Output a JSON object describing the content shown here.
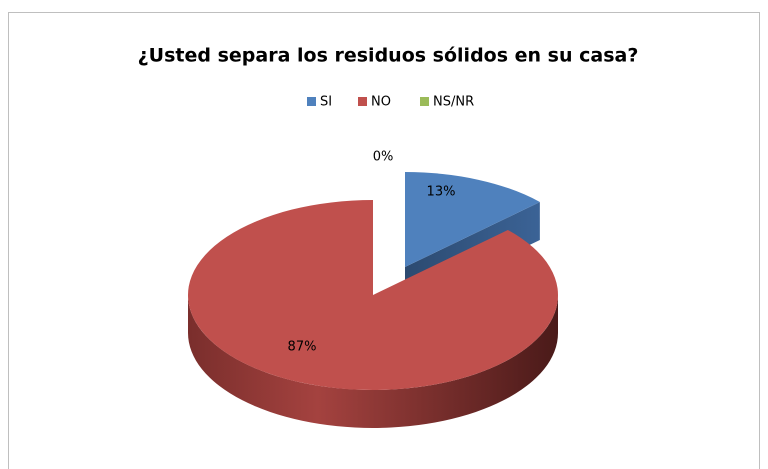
{
  "chart_data": {
    "type": "pie",
    "title": "¿Usted separa los residuos sólidos en su casa?",
    "categories": [
      "SI",
      "NO",
      "NS/NR"
    ],
    "values": [
      13,
      87,
      0
    ],
    "value_labels": [
      "13%",
      "87%",
      "0%"
    ],
    "colors": [
      "#4f81bd",
      "#c0504d",
      "#9bbb59"
    ],
    "legend": "top"
  }
}
